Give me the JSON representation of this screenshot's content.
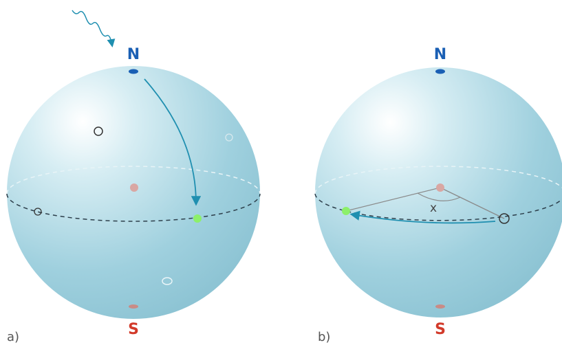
{
  "panels": [
    {
      "label": "a)",
      "north": "N",
      "south": "S"
    },
    {
      "label": "b)",
      "north": "N",
      "south": "S",
      "angle_label": "x"
    }
  ]
}
